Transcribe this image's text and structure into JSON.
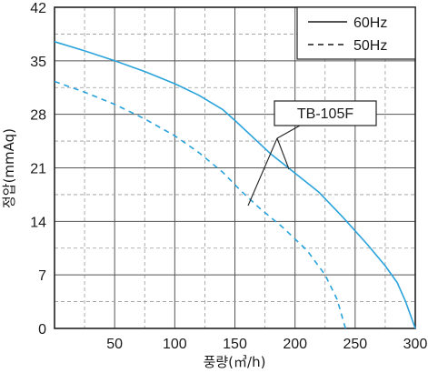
{
  "chart_data": {
    "type": "line",
    "xlabel": "풍량(㎥/h)",
    "ylabel": "정압(mmAq)",
    "xlim": [
      0,
      300
    ],
    "ylim": [
      0,
      42
    ],
    "x_ticks": [
      0,
      50,
      100,
      150,
      200,
      250,
      300
    ],
    "y_ticks": [
      0,
      7,
      14,
      21,
      28,
      35,
      42
    ],
    "x_tick_labels": [
      "50",
      "100",
      "150",
      "200",
      "250",
      "300"
    ],
    "y_tick_labels": [
      "0",
      "7",
      "14",
      "21",
      "28",
      "35",
      "42"
    ],
    "grid": true,
    "legend_position": "top-right",
    "annotation": "TB-105F",
    "series": [
      {
        "name": "60Hz",
        "style": "solid",
        "color": "#29a3db",
        "x": [
          0,
          25,
          50,
          75,
          100,
          120,
          140,
          150,
          165,
          180,
          200,
          220,
          240,
          260,
          275,
          285,
          292,
          300
        ],
        "y": [
          37.5,
          36.3,
          35.0,
          33.6,
          32.0,
          30.5,
          28.6,
          27.2,
          25.0,
          22.8,
          20.3,
          17.8,
          14.5,
          11.0,
          8.2,
          6.0,
          3.5,
          0
        ]
      },
      {
        "name": "50Hz",
        "style": "dashed",
        "color": "#29a3db",
        "x": [
          0,
          25,
          50,
          75,
          100,
          120,
          140,
          155,
          170,
          190,
          210,
          225,
          235,
          242
        ],
        "y": [
          32.3,
          30.9,
          29.3,
          27.4,
          25.2,
          23.0,
          20.4,
          18.0,
          15.8,
          13.2,
          10.2,
          7.0,
          3.8,
          0
        ]
      }
    ]
  }
}
